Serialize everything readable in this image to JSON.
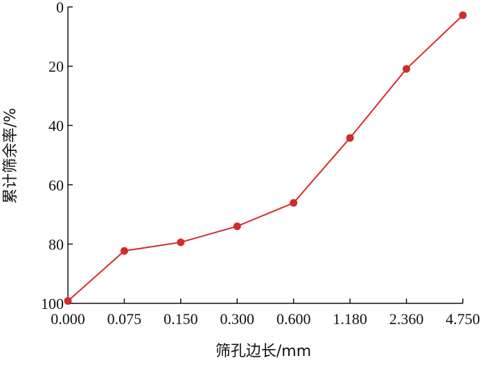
{
  "chart_data": {
    "type": "line",
    "title": "",
    "xlabel": "筛孔边长/mm",
    "ylabel": "累计筛余率/%",
    "categories": [
      "0.000",
      "0.075",
      "0.150",
      "0.300",
      "0.600",
      "1.180",
      "2.360",
      "4.750"
    ],
    "y_ticks": [
      "0",
      "20",
      "40",
      "60",
      "80",
      "100"
    ],
    "ylim": [
      0,
      100
    ],
    "y_inverted": true,
    "grid": false,
    "series": [
      {
        "values": [
          99.2,
          82.3,
          79.4,
          74.0,
          66.1,
          44.2,
          20.9,
          2.8
        ],
        "color": "#d42a2a"
      }
    ]
  }
}
